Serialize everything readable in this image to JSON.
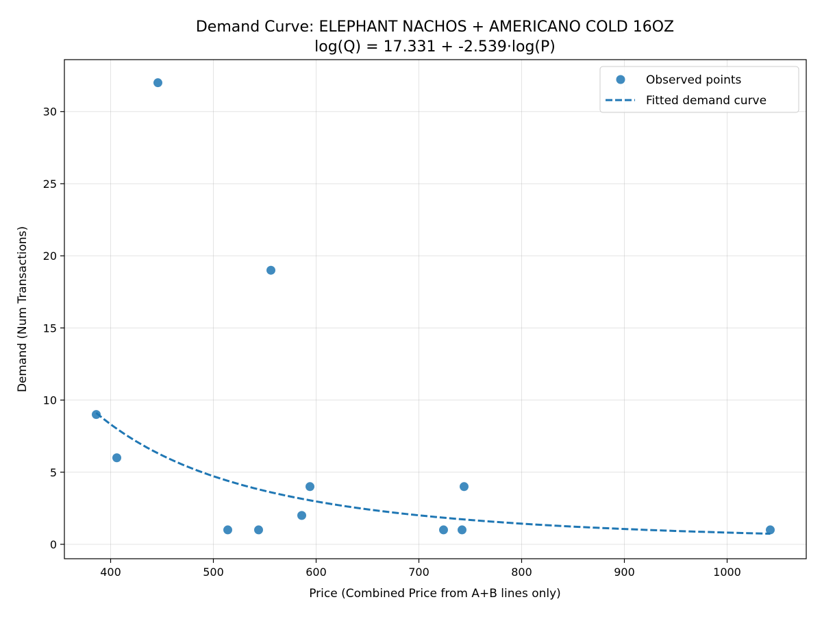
{
  "chart_data": {
    "type": "scatter",
    "title": "Demand Curve: ELEPHANT NACHOS + AMERICANO COLD 16OZ",
    "subtitle": "log(Q) = 17.331 + -2.539·log(P)",
    "xlabel": "Price (Combined Price from A+B lines only)",
    "ylabel": "Demand (Num Transactions)",
    "xlim": [
      355,
      1077
    ],
    "ylim": [
      -1,
      33.6
    ],
    "xticks": [
      400,
      500,
      600,
      700,
      800,
      900,
      1000
    ],
    "yticks": [
      0,
      5,
      10,
      15,
      20,
      25,
      30
    ],
    "grid": true,
    "legend": "top-right",
    "colors": {
      "points": "#1f77b4",
      "curve": "#1f77b4"
    },
    "series": [
      {
        "name": "Observed points",
        "kind": "scatter",
        "points": [
          {
            "x": 386,
            "y": 9
          },
          {
            "x": 406,
            "y": 6
          },
          {
            "x": 446,
            "y": 32
          },
          {
            "x": 514,
            "y": 1
          },
          {
            "x": 544,
            "y": 1
          },
          {
            "x": 556,
            "y": 19
          },
          {
            "x": 586,
            "y": 2
          },
          {
            "x": 594,
            "y": 4
          },
          {
            "x": 724,
            "y": 1
          },
          {
            "x": 742,
            "y": 1
          },
          {
            "x": 744,
            "y": 4
          },
          {
            "x": 1042,
            "y": 1
          }
        ]
      },
      {
        "name": "Fitted demand curve",
        "kind": "line",
        "style": "dashed",
        "intercept": 17.331,
        "slope": -2.539,
        "x_range": [
          386,
          1042
        ]
      }
    ]
  }
}
